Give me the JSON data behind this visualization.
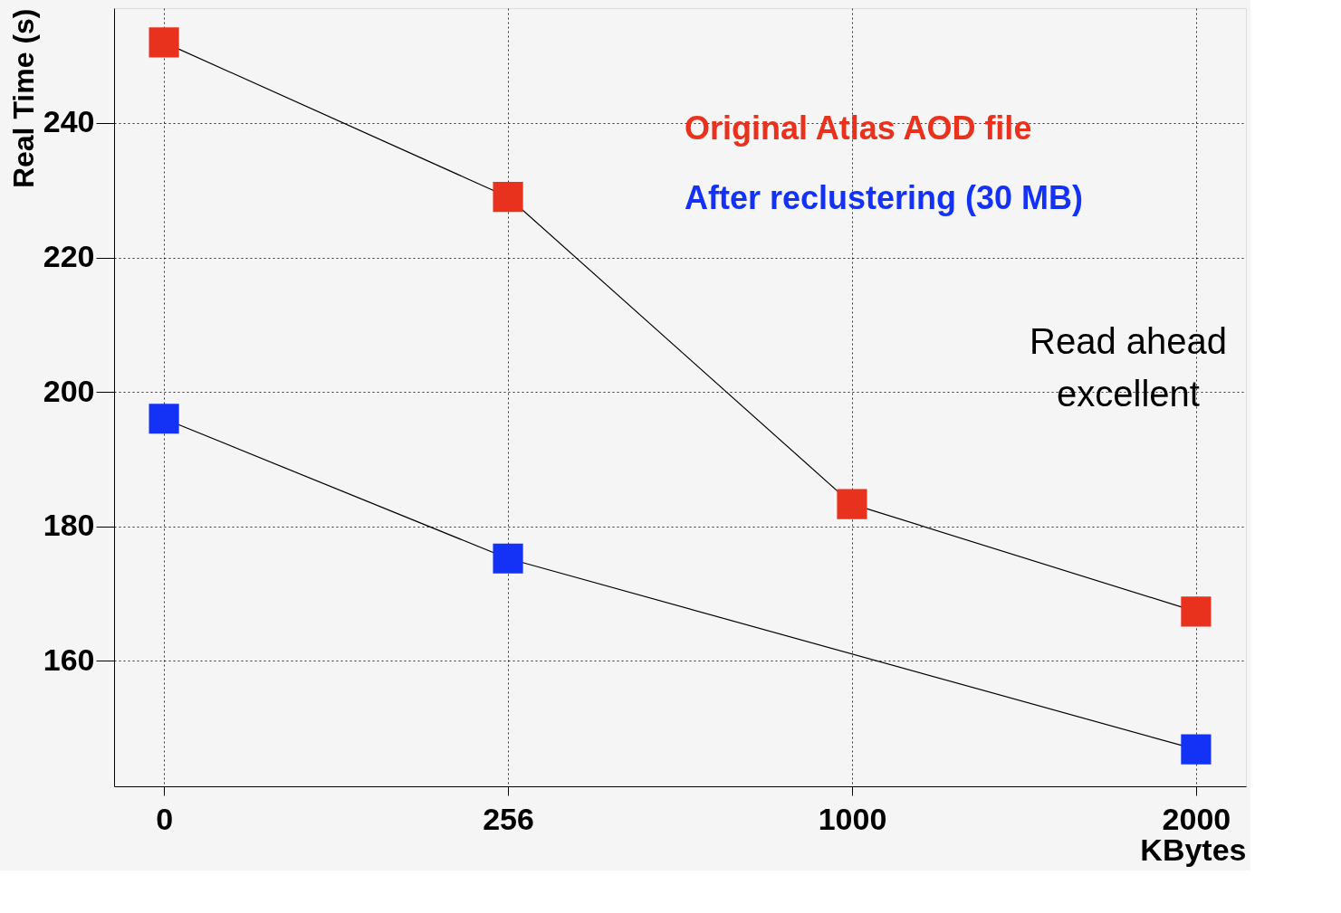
{
  "chart_data": {
    "type": "line",
    "xlabel": "KBytes",
    "ylabel": "Real Time (s)",
    "categories": [
      "0",
      "256",
      "1000",
      "2000"
    ],
    "series": [
      {
        "name": "Original Atlas AOD file",
        "color": "#e8321e",
        "values": [
          252,
          229,
          183.3,
          167.3
        ]
      },
      {
        "name": "After reclustering (30 MB)",
        "color": "#1432f5",
        "values": [
          196,
          175.2,
          null,
          146.8
        ]
      }
    ],
    "ylim": [
      141.3,
      257.1
    ],
    "yticks": [
      160,
      180,
      200,
      220,
      240
    ],
    "grid": true,
    "marker": "square",
    "legend": "top right",
    "annotations": [
      "Read ahead excellent"
    ]
  }
}
